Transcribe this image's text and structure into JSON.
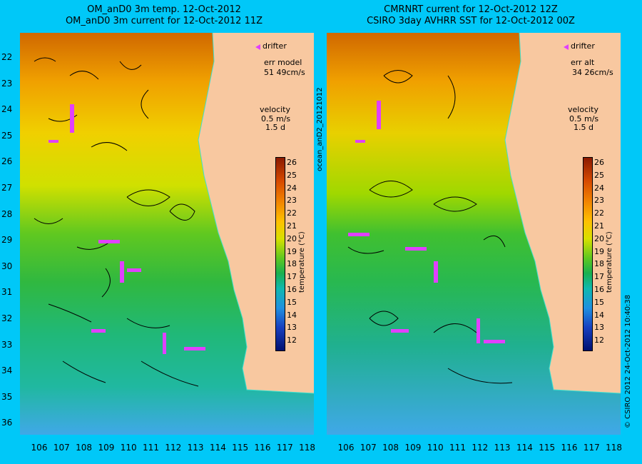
{
  "left": {
    "title1": "OM_anD0 3m temp. 12-Oct-2012",
    "title2": "OM_anD0 3m current for 12-Oct-2012 11Z",
    "drifter": "drifter",
    "err_label": "err model",
    "err_value": "51 49cm/s",
    "velocity_label": "velocity",
    "velocity_scale": "0.5 m/s",
    "velocity_days": "1.5 d"
  },
  "right": {
    "title1": "CMRNRT current for 12-Oct-2012 12Z",
    "title2": "CSIRO 3day AVHRR SST for 12-Oct-2012 00Z",
    "drifter": "drifter",
    "err_label": "err alt",
    "err_value": "34 26cm/s",
    "velocity_label": "velocity",
    "velocity_scale": "0.5 m/s",
    "velocity_days": "1.5 d"
  },
  "colorbar": {
    "ticks": [
      "26",
      "25",
      "24",
      "23",
      "22",
      "21",
      "20",
      "19",
      "18",
      "17",
      "16",
      "15",
      "14",
      "13",
      "12"
    ],
    "unit": "temperature (°C)",
    "colors_top_to_bottom": [
      "#8b1a00",
      "#d64a00",
      "#f08000",
      "#ffc000",
      "#d8e000",
      "#60c820",
      "#18b050",
      "#10b8b0",
      "#2090e0",
      "#1840c0",
      "#001070"
    ]
  },
  "axes": {
    "y_ticks": [
      "22",
      "23",
      "24",
      "25",
      "26",
      "27",
      "28",
      "29",
      "30",
      "31",
      "32",
      "33",
      "34",
      "35",
      "36"
    ],
    "x_ticks": [
      "106",
      "107",
      "108",
      "109",
      "110",
      "111",
      "112",
      "113",
      "114",
      "115",
      "116",
      "117",
      "118"
    ]
  },
  "side_labels": {
    "left": "ocean_anD2_20121012",
    "right": "© CSIRO 2012   24-Oct-2012 10:40:38"
  },
  "colors": {
    "background": "#00c8f8",
    "land": "#f8c8a0",
    "drifter": "#e040ff",
    "coastline": "#40e0d0"
  }
}
